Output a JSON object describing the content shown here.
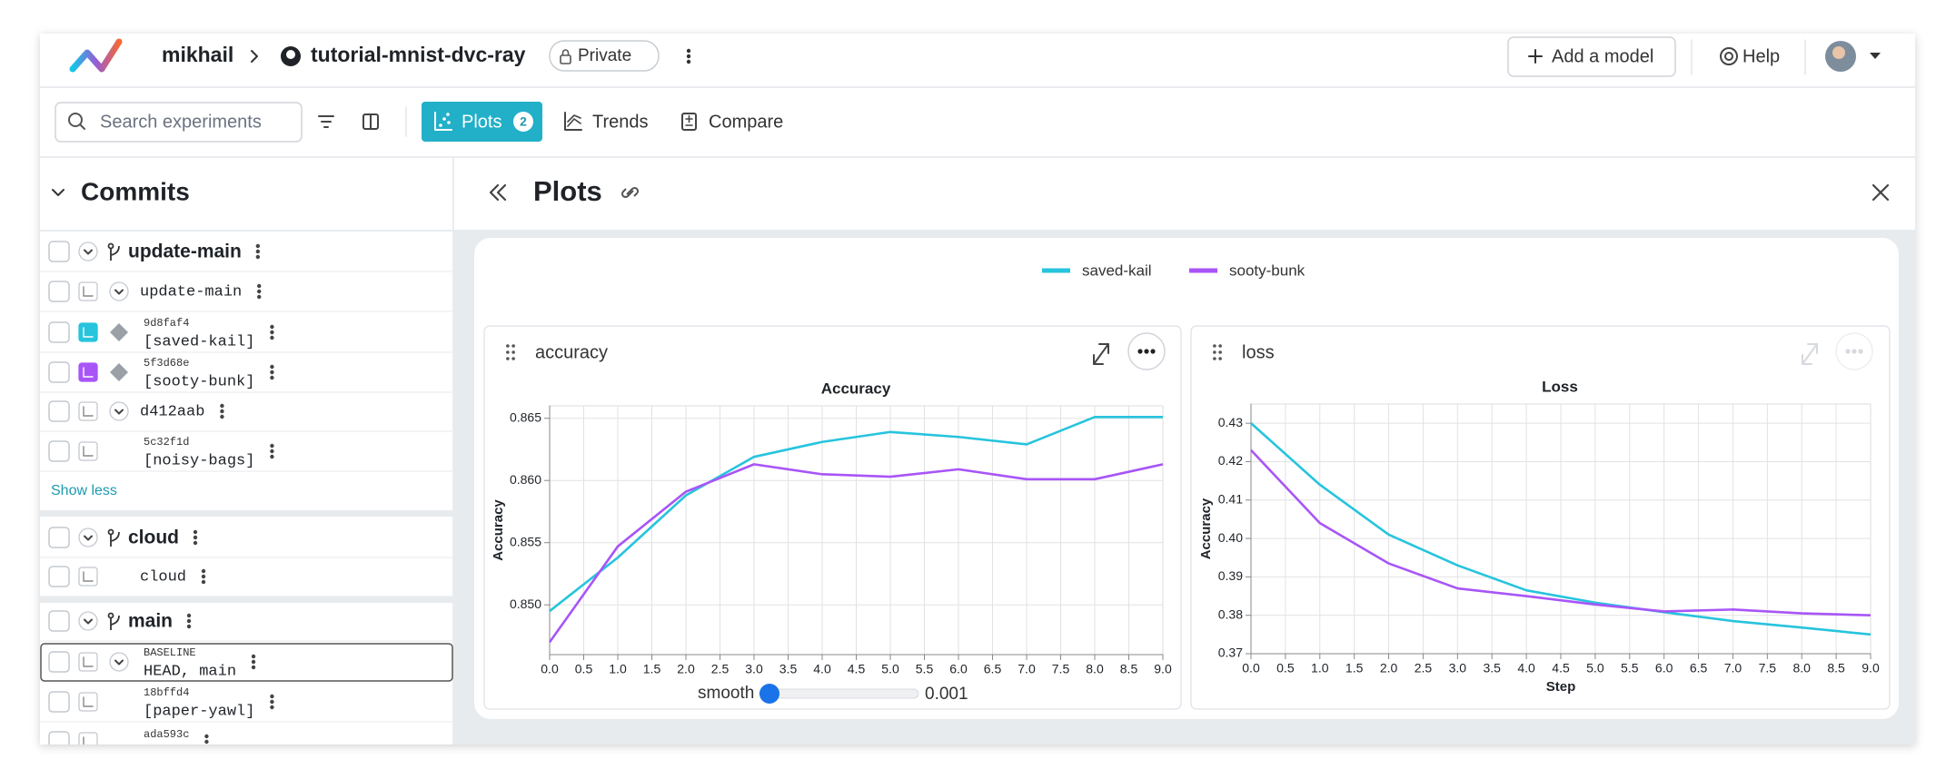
{
  "header": {
    "user": "mikhail",
    "repo": "tutorial-mnist-dvc-ray",
    "visibility": "Private",
    "add_model": "Add a model",
    "help": "Help"
  },
  "toolbar": {
    "search_placeholder": "Search experiments",
    "plots": "Plots",
    "plots_count": 2,
    "trends": "Trends",
    "compare": "Compare"
  },
  "sidebar": {
    "title": "Commits",
    "groups": [
      {
        "branch": "update-main",
        "rows": [
          {
            "label": "update-main",
            "expandable": true
          },
          {
            "hash": "9d8faf4",
            "label": "[saved-kail]",
            "color": "#27c4dd"
          },
          {
            "hash": "5f3d68e",
            "label": "[sooty-bunk]",
            "color": "#a855f7"
          },
          {
            "label": "d412aab",
            "expandable": true
          },
          {
            "hash": "5c32f1d",
            "label": "[noisy-bags]"
          }
        ],
        "more": "Show less"
      },
      {
        "branch": "cloud",
        "rows": [
          {
            "label": "cloud"
          }
        ]
      },
      {
        "branch": "main",
        "rows": [
          {
            "hash": "BASELINE",
            "label": "HEAD, main",
            "expandable": true,
            "selected": true
          },
          {
            "hash": "18bffd4",
            "label": "[paper-yawl]"
          },
          {
            "hash": "ada593c"
          }
        ]
      }
    ]
  },
  "panel": {
    "title": "Plots"
  },
  "plots": [
    {
      "title": "accuracy"
    },
    {
      "title": "loss"
    }
  ],
  "chart_data": [
    {
      "type": "line",
      "title": "Accuracy",
      "y_label": "Accuracy",
      "x": [
        0,
        1,
        2,
        3,
        4,
        5,
        6,
        7,
        8,
        9
      ],
      "xlim": [
        0,
        9
      ],
      "xticks": [
        {
          "value": 0,
          "label": "0.0"
        },
        0.5,
        {
          "value": 1,
          "label": "1.0"
        },
        1.5,
        {
          "value": 2,
          "label": "2.0"
        },
        2.5,
        {
          "value": 3,
          "label": "3.0"
        },
        3.5,
        {
          "value": 4,
          "label": "4.0"
        },
        4.5,
        {
          "value": 5,
          "label": "5.0"
        },
        5.5,
        {
          "value": 6,
          "label": "6.0"
        },
        6.5,
        {
          "value": 7,
          "label": "7.0"
        },
        7.5,
        {
          "value": 8,
          "label": "8.0"
        },
        8.5,
        {
          "value": 9,
          "label": "9.0"
        }
      ],
      "ylim": [
        0.846,
        0.866
      ],
      "yticks": [
        {
          "value": 0.85,
          "label": "0.850"
        },
        0.855,
        {
          "value": 0.86,
          "label": "0.860"
        },
        0.865
      ],
      "grid": true,
      "series": [
        {
          "name": "saved-kail",
          "color": "#27c4dd",
          "values": [
            0.8495,
            0.8538,
            0.8588,
            0.8619,
            0.8631,
            0.8639,
            0.8635,
            0.8629,
            0.8651,
            0.8651
          ]
        },
        {
          "name": "sooty-bunk",
          "color": "#a855f7",
          "values": [
            0.847,
            0.8547,
            0.8591,
            0.8613,
            0.8605,
            0.8603,
            0.8609,
            0.8601,
            0.8601,
            0.8613
          ]
        }
      ]
    },
    {
      "type": "line",
      "title": "Loss",
      "y_label": "Accuracy",
      "x_label": "Step",
      "x": [
        0,
        1,
        2,
        3,
        4,
        5,
        6,
        7,
        8,
        9
      ],
      "xlim": [
        0,
        9
      ],
      "xticks": [
        {
          "value": 0,
          "label": "0.0"
        },
        0.5,
        {
          "value": 1,
          "label": "1.0"
        },
        1.5,
        {
          "value": 2,
          "label": "2.0"
        },
        2.5,
        {
          "value": 3,
          "label": "3.0"
        },
        3.5,
        {
          "value": 4,
          "label": "4.0"
        },
        4.5,
        {
          "value": 5,
          "label": "5.0"
        },
        5.5,
        {
          "value": 6,
          "label": "6.0"
        },
        6.5,
        {
          "value": 7,
          "label": "7.0"
        },
        7.5,
        {
          "value": 8,
          "label": "8.0"
        },
        8.5,
        {
          "value": 9,
          "label": "9.0"
        }
      ],
      "ylim": [
        0.37,
        0.435
      ],
      "yticks": [
        0.37,
        0.38,
        0.39,
        {
          "value": 0.4,
          "label": "0.40"
        },
        0.41,
        0.42,
        0.43
      ],
      "grid": true,
      "series": [
        {
          "name": "saved-kail",
          "color": "#27c4dd",
          "values": [
            0.43,
            0.414,
            0.401,
            0.393,
            0.3865,
            0.3833,
            0.3808,
            0.3785,
            0.3768,
            0.375
          ]
        },
        {
          "name": "sooty-bunk",
          "color": "#a855f7",
          "values": [
            0.423,
            0.404,
            0.3935,
            0.387,
            0.385,
            0.3828,
            0.381,
            0.3815,
            0.3805,
            0.38
          ]
        }
      ]
    }
  ],
  "smoothing": {
    "label": "smooth",
    "value": 0.001
  }
}
